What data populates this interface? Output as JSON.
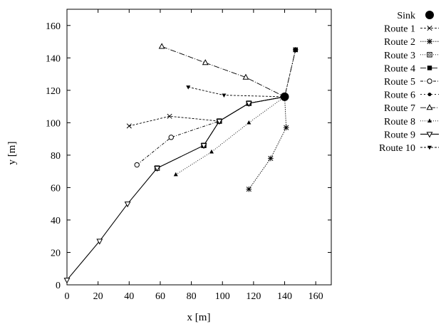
{
  "chart_data": {
    "type": "line",
    "title": "",
    "xlabel": "x [m]",
    "ylabel": "y [m]",
    "xlim": [
      0,
      170
    ],
    "ylim": [
      0,
      170
    ],
    "xticks": [
      "0",
      "20",
      "40",
      "60",
      "80",
      "100",
      "120",
      "140",
      "160"
    ],
    "yticks": [
      "0",
      "20",
      "40",
      "60",
      "80",
      "100",
      "120",
      "140",
      "160"
    ],
    "grid": false,
    "legend_position": "outside-right",
    "sink": {
      "name": "Sink",
      "x": 140,
      "y": 116,
      "marker": "big-filled-circle"
    },
    "series": [
      {
        "name": "Route 1",
        "marker": "cross",
        "dash": "3,2",
        "points": [
          [
            40,
            98
          ],
          [
            66,
            104
          ],
          [
            98,
            101
          ],
          [
            117,
            112
          ],
          [
            140,
            116
          ]
        ]
      },
      {
        "name": "Route 2",
        "marker": "star",
        "dash": "1.5,1.5",
        "points": [
          [
            117,
            59
          ],
          [
            131,
            78
          ],
          [
            141,
            97
          ],
          [
            140,
            116
          ],
          [
            147,
            145
          ]
        ]
      },
      {
        "name": "Route 3",
        "marker": "open-square",
        "dash": "1,2",
        "points": [
          [
            58,
            72
          ],
          [
            88,
            86
          ],
          [
            98,
            101
          ],
          [
            117,
            112
          ],
          [
            140,
            116
          ]
        ]
      },
      {
        "name": "Route 4",
        "marker": "filled-square",
        "dash": "8,3,2,3",
        "points": [
          [
            88,
            86
          ],
          [
            98,
            101
          ],
          [
            117,
            112
          ],
          [
            140,
            116
          ],
          [
            147,
            145
          ]
        ]
      },
      {
        "name": "Route 5",
        "marker": "open-circle",
        "dash": "4,2,1,2",
        "points": [
          [
            45,
            74
          ],
          [
            67,
            91
          ],
          [
            98,
            101
          ],
          [
            117,
            112
          ],
          [
            140,
            116
          ]
        ]
      },
      {
        "name": "Route 6",
        "marker": "filled-circle",
        "dash": "2,3",
        "points": [
          [
            98,
            101
          ],
          [
            117,
            112
          ],
          [
            140,
            116
          ]
        ]
      },
      {
        "name": "Route 7",
        "marker": "open-triangle",
        "dash": "8,2,1,2",
        "points": [
          [
            61,
            147
          ],
          [
            89,
            137
          ],
          [
            115,
            128
          ],
          [
            140,
            116
          ]
        ]
      },
      {
        "name": "Route 8",
        "marker": "filled-triangle",
        "dash": "1,2",
        "points": [
          [
            70,
            68
          ],
          [
            93,
            82
          ],
          [
            117,
            100
          ],
          [
            140,
            116
          ]
        ]
      },
      {
        "name": "Route 9",
        "marker": "open-down-triangle",
        "dash": "",
        "points": [
          [
            0,
            3
          ],
          [
            21,
            27
          ],
          [
            39,
            50
          ],
          [
            58,
            72
          ],
          [
            88,
            86
          ],
          [
            98,
            101
          ],
          [
            117,
            112
          ],
          [
            140,
            116
          ]
        ]
      },
      {
        "name": "Route 10",
        "marker": "filled-down-triangle",
        "dash": "3,2",
        "points": [
          [
            78,
            122
          ],
          [
            101,
            117
          ],
          [
            140,
            116
          ]
        ]
      }
    ]
  }
}
